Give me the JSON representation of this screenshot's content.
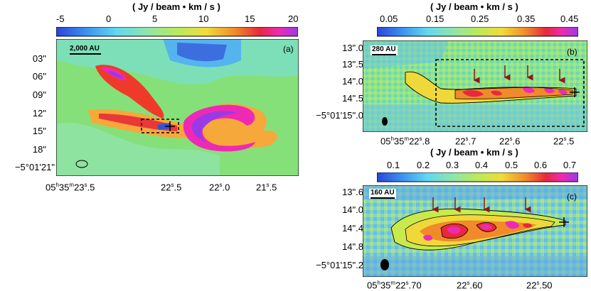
{
  "panel_a": {
    "colorbar_title": "( Jy / beam • km / s )",
    "colorbar_ticks": [
      "-5",
      "0",
      "5",
      "10",
      "15",
      "20"
    ],
    "scale_label": "2,000 AU",
    "label": "(a)",
    "y_ticks": [
      "03\"",
      "06\"",
      "09\"",
      "12\"",
      "15\"",
      "18\"",
      "−5°01'21\""
    ],
    "x_ticks": {
      "t1": {
        "a": "05",
        "ah": "h",
        "b": "35",
        "bm": "m",
        "c": "23",
        "cs": "s",
        "d": ".5"
      },
      "t2": {
        "c": "22",
        "cs": "s",
        "d": ".5"
      },
      "t3": {
        "c": "22",
        "cs": "s",
        "d": ".0"
      },
      "t4": {
        "c": "21",
        "cs": "s",
        "d": ".5"
      }
    }
  },
  "panel_b": {
    "colorbar_title": "( Jy / beam • km / s )",
    "colorbar_ticks": [
      "0.05",
      "0.15",
      "0.25",
      "0.35",
      "0.45"
    ],
    "scale_label": "280 AU",
    "label": "(b)",
    "y_ticks": [
      "13\".0",
      "13\".5",
      "14\".0",
      "14\".5",
      "−5°01'15\".0"
    ],
    "x_ticks": {
      "t1": {
        "a": "05",
        "ah": "h",
        "b": "35",
        "bm": "m",
        "c": "22",
        "cs": "s",
        "d": ".8"
      },
      "t2": {
        "c": "22",
        "cs": "s",
        "d": ".7"
      },
      "t3": {
        "c": "22",
        "cs": "s",
        "d": ".6"
      },
      "t4": {
        "c": "22",
        "cs": "s",
        "d": ".5"
      }
    }
  },
  "panel_c": {
    "colorbar_title": "( Jy / beam • km / s )",
    "colorbar_ticks": [
      "0.1",
      "0.2",
      "0.3",
      "0.4",
      "0.5",
      "0.6",
      "0.7"
    ],
    "scale_label": "160 AU",
    "label": "(c)",
    "y_ticks": [
      "13\".6",
      "14\".0",
      "14\".4",
      "14\".8",
      "−5°01'15\".2"
    ],
    "x_ticks": {
      "t1": {
        "a": "05",
        "ah": "h",
        "b": "35",
        "bm": "m",
        "c": "22",
        "cs": "s",
        "d": ".70"
      },
      "t2": {
        "c": "22",
        "cs": "s",
        "d": ".60"
      },
      "t3": {
        "c": "22",
        "cs": "s",
        "d": ".50"
      }
    }
  },
  "colors": {
    "background_map": "#82e07a",
    "colormap": [
      "#2b4bdc",
      "#39a9f2",
      "#6de8d8",
      "#7fe07a",
      "#c8ea4c",
      "#f1d43a",
      "#f08a2a",
      "#e8273a",
      "#ee2aa8",
      "#9a3ae6"
    ]
  }
}
